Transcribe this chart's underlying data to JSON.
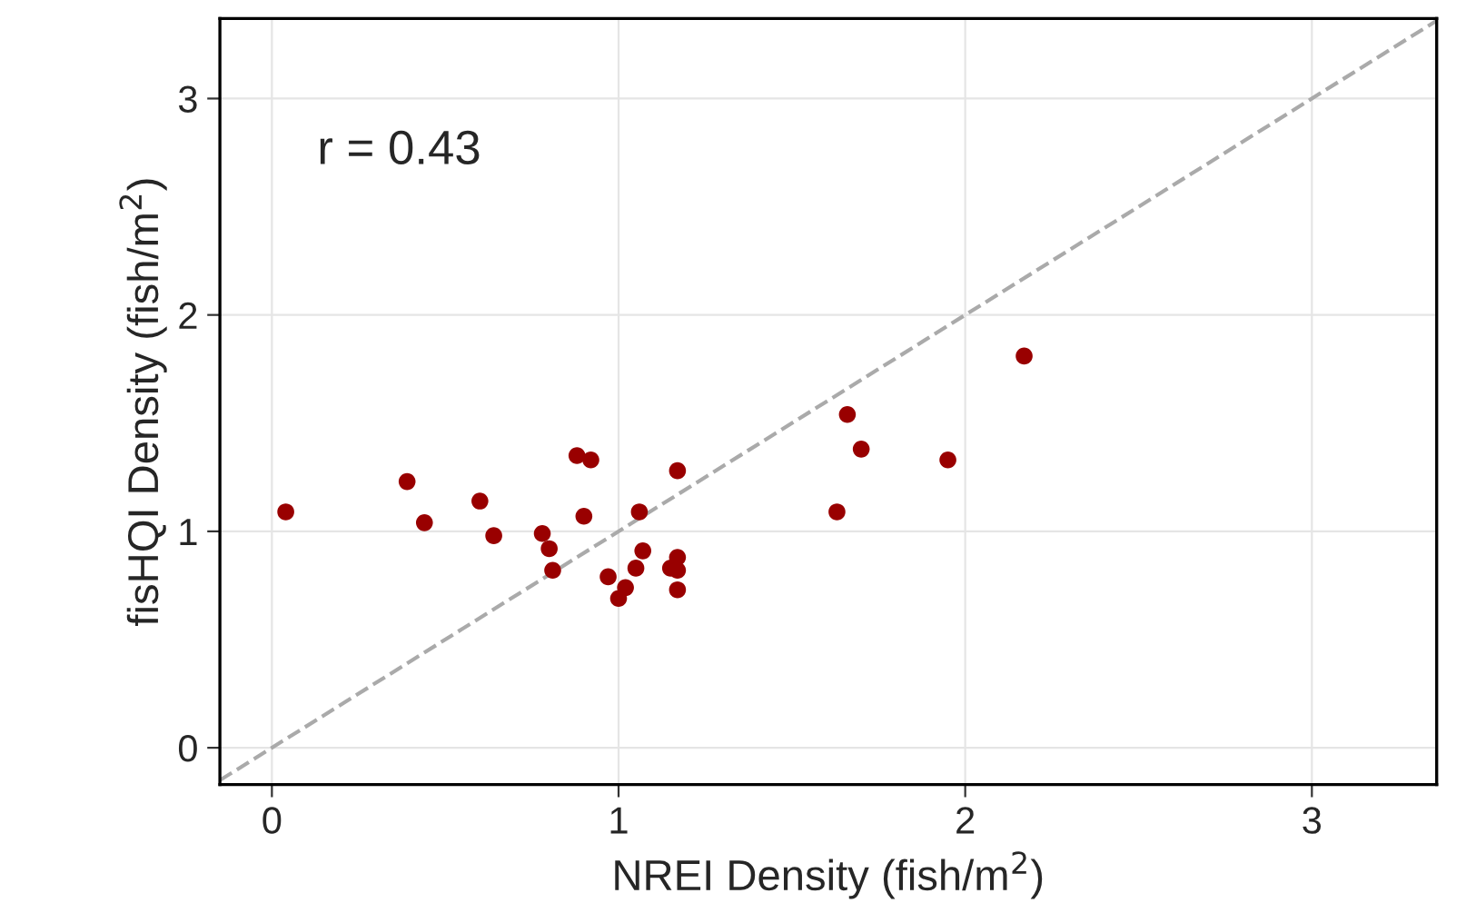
{
  "chart_data": {
    "type": "scatter",
    "xlabel": "NREI Density (fish/m$^{2}$)",
    "ylabel": "fisHQI Density (fish/m$^{2}$)",
    "xlim": [
      -0.15,
      3.36
    ],
    "ylim": [
      -0.17,
      3.37
    ],
    "xticks": [
      0,
      1,
      2,
      3
    ],
    "yticks": [
      0,
      1,
      2,
      3
    ],
    "grid": true,
    "annotations": [
      "r = 0.43"
    ],
    "series": [
      {
        "marker": "circle",
        "color": "#990000",
        "x": [
          0.04,
          0.39,
          0.44,
          0.6,
          0.64,
          0.78,
          0.8,
          0.81,
          0.88,
          0.9,
          0.92,
          0.97,
          1.0,
          1.02,
          1.05,
          1.06,
          1.07,
          1.15,
          1.17,
          1.17,
          1.17,
          1.17,
          1.63,
          1.66,
          1.7,
          1.95,
          2.17
        ],
        "values": [
          1.09,
          1.23,
          1.04,
          1.14,
          0.98,
          0.99,
          0.92,
          0.82,
          1.35,
          1.07,
          1.33,
          0.79,
          0.69,
          0.74,
          0.83,
          1.09,
          0.91,
          0.83,
          1.28,
          0.88,
          0.82,
          0.73,
          1.09,
          1.54,
          1.38,
          1.33,
          1.81
        ]
      },
      {
        "type": "line",
        "color": "#aaaaaa",
        "line_style": "dashed",
        "x": [
          -0.15,
          3.36
        ],
        "values": [
          -0.15,
          3.36
        ]
      }
    ]
  }
}
